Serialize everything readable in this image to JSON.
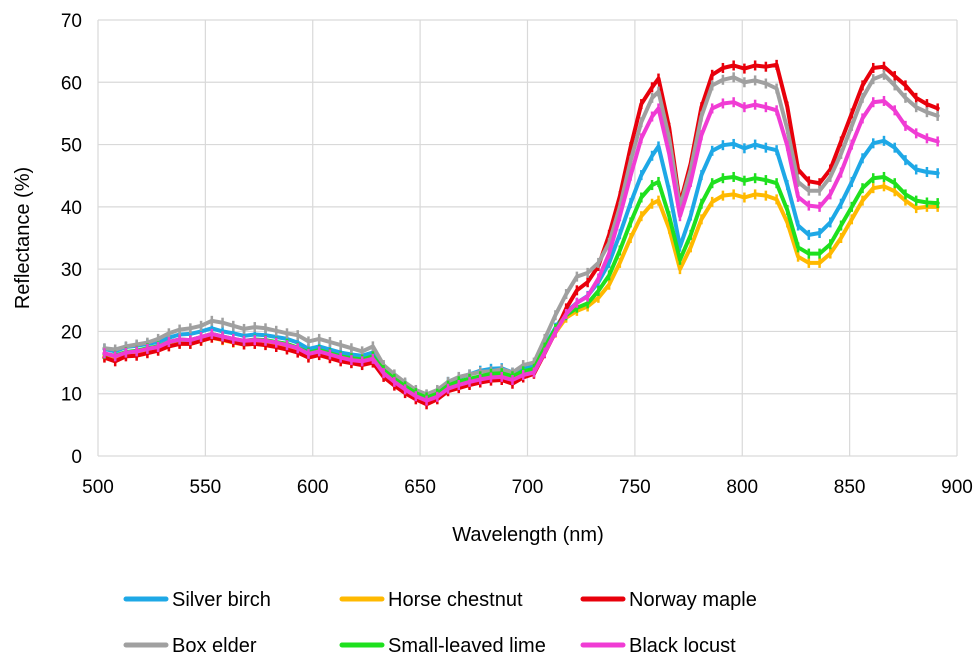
{
  "chart_data": {
    "type": "line",
    "title": "",
    "xlabel": "Wavelength (nm)",
    "ylabel": "Reflectance (%)",
    "xlim": [
      500,
      900
    ],
    "ylim": [
      0,
      70
    ],
    "xticks": [
      500,
      550,
      600,
      650,
      700,
      750,
      800,
      850,
      900
    ],
    "yticks": [
      0,
      10,
      20,
      30,
      40,
      50,
      60,
      70
    ],
    "grid": true,
    "legend_position": "bottom",
    "x": [
      503,
      508,
      513,
      518,
      523,
      528,
      533,
      538,
      543,
      548,
      553,
      558,
      563,
      568,
      573,
      578,
      583,
      588,
      593,
      598,
      603,
      608,
      613,
      618,
      623,
      628,
      633,
      638,
      643,
      648,
      653,
      658,
      663,
      668,
      673,
      678,
      683,
      688,
      693,
      698,
      703,
      708,
      713,
      718,
      723,
      728,
      733,
      738,
      743,
      748,
      753,
      758,
      761,
      766,
      771,
      776,
      781,
      786,
      791,
      796,
      801,
      806,
      811,
      816,
      821,
      826,
      831,
      836,
      841,
      846,
      851,
      856,
      861,
      866,
      871,
      876,
      881,
      886,
      891
    ],
    "series": [
      {
        "name": "Silver birch",
        "color": "#1EA8E6",
        "values": [
          17.2,
          16.8,
          17.5,
          17.7,
          18.0,
          18.3,
          19.0,
          19.5,
          19.6,
          20.0,
          20.5,
          20.0,
          19.7,
          19.3,
          19.5,
          19.4,
          19.1,
          18.8,
          18.2,
          17.2,
          17.6,
          17.1,
          16.6,
          16.3,
          16.1,
          16.6,
          14.3,
          12.9,
          11.6,
          10.4,
          9.7,
          10.4,
          11.9,
          12.6,
          13.1,
          13.7,
          14.0,
          14.1,
          13.4,
          14.2,
          14.6,
          17.6,
          20.6,
          23.1,
          24.6,
          25.7,
          27.9,
          31.0,
          35.6,
          40.6,
          45.1,
          48.2,
          49.7,
          42.6,
          33.6,
          38.6,
          45.1,
          49.0,
          49.9,
          50.1,
          49.4,
          50.0,
          49.5,
          49.1,
          43.5,
          37.0,
          35.5,
          35.8,
          37.5,
          40.5,
          44.0,
          47.8,
          50.2,
          50.6,
          49.5,
          47.5,
          46.0,
          45.6,
          45.4
        ]
      },
      {
        "name": "Horse chestnut",
        "color": "#FFB900",
        "values": [
          16.0,
          15.7,
          16.2,
          16.4,
          16.7,
          17.0,
          17.7,
          18.1,
          18.0,
          18.5,
          19.0,
          18.6,
          18.2,
          17.9,
          18.0,
          17.9,
          17.6,
          17.3,
          16.8,
          16.0,
          16.4,
          15.9,
          15.4,
          15.0,
          14.8,
          15.2,
          13.0,
          11.6,
          10.4,
          9.4,
          8.8,
          9.4,
          10.6,
          11.2,
          11.6,
          12.0,
          12.4,
          12.5,
          12.0,
          12.9,
          13.4,
          16.8,
          19.8,
          22.2,
          23.3,
          24.0,
          25.4,
          27.5,
          31.0,
          35.0,
          38.5,
          40.5,
          41.0,
          36.5,
          30.0,
          33.5,
          38.0,
          40.8,
          41.8,
          42.0,
          41.5,
          42.0,
          41.8,
          41.2,
          37.5,
          32.0,
          31.0,
          31.0,
          32.5,
          35.0,
          38.0,
          41.0,
          43.0,
          43.3,
          42.5,
          41.0,
          39.8,
          40.0,
          40.0
        ]
      },
      {
        "name": "Norway maple",
        "color": "#E8000B",
        "values": [
          15.8,
          15.2,
          16.0,
          16.1,
          16.5,
          16.9,
          17.6,
          18.0,
          18.0,
          18.5,
          19.0,
          18.7,
          18.3,
          17.9,
          18.0,
          17.8,
          17.5,
          17.1,
          16.6,
          15.8,
          16.2,
          15.7,
          15.2,
          14.9,
          14.6,
          15.0,
          12.7,
          11.3,
          10.1,
          9.1,
          8.3,
          9.1,
          10.4,
          10.9,
          11.4,
          11.8,
          12.1,
          12.2,
          11.6,
          12.6,
          13.2,
          16.5,
          19.9,
          23.7,
          26.6,
          27.9,
          30.5,
          35.5,
          41.7,
          49.6,
          56.5,
          59.2,
          60.6,
          52.7,
          40.5,
          47.0,
          56.0,
          61.2,
          62.3,
          62.7,
          62.2,
          62.7,
          62.5,
          62.8,
          56.1,
          46.0,
          44.1,
          43.8,
          46.0,
          50.5,
          55.0,
          59.5,
          62.3,
          62.5,
          61.0,
          59.5,
          57.5,
          56.5,
          55.8
        ]
      },
      {
        "name": "Box elder",
        "color": "#A0A0A0",
        "values": [
          17.3,
          17.1,
          17.6,
          17.9,
          18.2,
          18.8,
          19.7,
          20.3,
          20.5,
          20.9,
          21.7,
          21.4,
          20.9,
          20.4,
          20.7,
          20.5,
          20.1,
          19.7,
          19.4,
          18.4,
          18.8,
          18.3,
          17.8,
          17.3,
          16.8,
          17.6,
          14.6,
          13.1,
          11.8,
          10.6,
          9.9,
          10.6,
          11.9,
          12.7,
          13.1,
          13.5,
          13.6,
          13.9,
          13.4,
          14.6,
          15.0,
          18.8,
          22.6,
          26.0,
          28.8,
          29.4,
          31.0,
          34.2,
          40.0,
          47.4,
          53.6,
          57.5,
          58.5,
          51.0,
          40.0,
          46.0,
          54.5,
          59.5,
          60.4,
          60.8,
          60.0,
          60.3,
          59.8,
          59.0,
          52.5,
          44.0,
          42.6,
          42.6,
          44.8,
          48.5,
          53.0,
          57.5,
          60.5,
          61.2,
          59.5,
          57.5,
          56.0,
          55.2,
          54.6
        ]
      },
      {
        "name": "Small-leaved lime",
        "color": "#1EE01E",
        "values": [
          16.4,
          16.1,
          16.7,
          16.9,
          17.3,
          17.6,
          18.3,
          18.7,
          18.6,
          19.1,
          19.6,
          19.2,
          18.8,
          18.5,
          18.7,
          18.6,
          18.3,
          18.0,
          17.4,
          16.6,
          17.0,
          16.5,
          16.0,
          15.7,
          15.5,
          16.0,
          13.8,
          12.4,
          11.2,
          10.1,
          9.4,
          10.0,
          11.3,
          12.0,
          12.4,
          12.8,
          13.2,
          13.3,
          12.8,
          13.6,
          14.0,
          17.4,
          20.4,
          22.6,
          23.8,
          24.5,
          26.5,
          29.0,
          33.0,
          37.5,
          41.5,
          43.5,
          44.0,
          38.5,
          31.5,
          35.5,
          40.5,
          43.8,
          44.6,
          44.8,
          44.2,
          44.6,
          44.3,
          43.8,
          39.5,
          33.5,
          32.5,
          32.5,
          34.0,
          37.0,
          40.0,
          43.0,
          44.6,
          44.8,
          43.8,
          42.0,
          41.0,
          40.7,
          40.6
        ]
      },
      {
        "name": "Black locust",
        "color": "#F03CD4",
        "values": [
          16.5,
          16.0,
          16.6,
          16.8,
          17.2,
          17.5,
          18.3,
          18.7,
          18.6,
          19.1,
          19.6,
          19.2,
          18.8,
          18.5,
          18.6,
          18.5,
          18.2,
          17.8,
          17.3,
          16.4,
          16.8,
          16.3,
          15.8,
          15.4,
          15.2,
          15.6,
          13.3,
          11.9,
          10.7,
          9.6,
          8.9,
          9.5,
          10.8,
          11.4,
          11.9,
          12.3,
          12.6,
          12.7,
          12.2,
          13.0,
          13.4,
          16.6,
          19.9,
          22.8,
          24.6,
          25.6,
          28.5,
          32.5,
          38.5,
          45.0,
          51.0,
          54.5,
          55.8,
          48.5,
          38.5,
          44.0,
          51.5,
          55.8,
          56.6,
          56.8,
          56.0,
          56.4,
          56.0,
          55.5,
          49.8,
          41.6,
          40.2,
          40.0,
          42.0,
          45.5,
          50.0,
          54.2,
          56.8,
          57.0,
          55.5,
          53.0,
          51.8,
          51.0,
          50.5
        ]
      }
    ]
  }
}
